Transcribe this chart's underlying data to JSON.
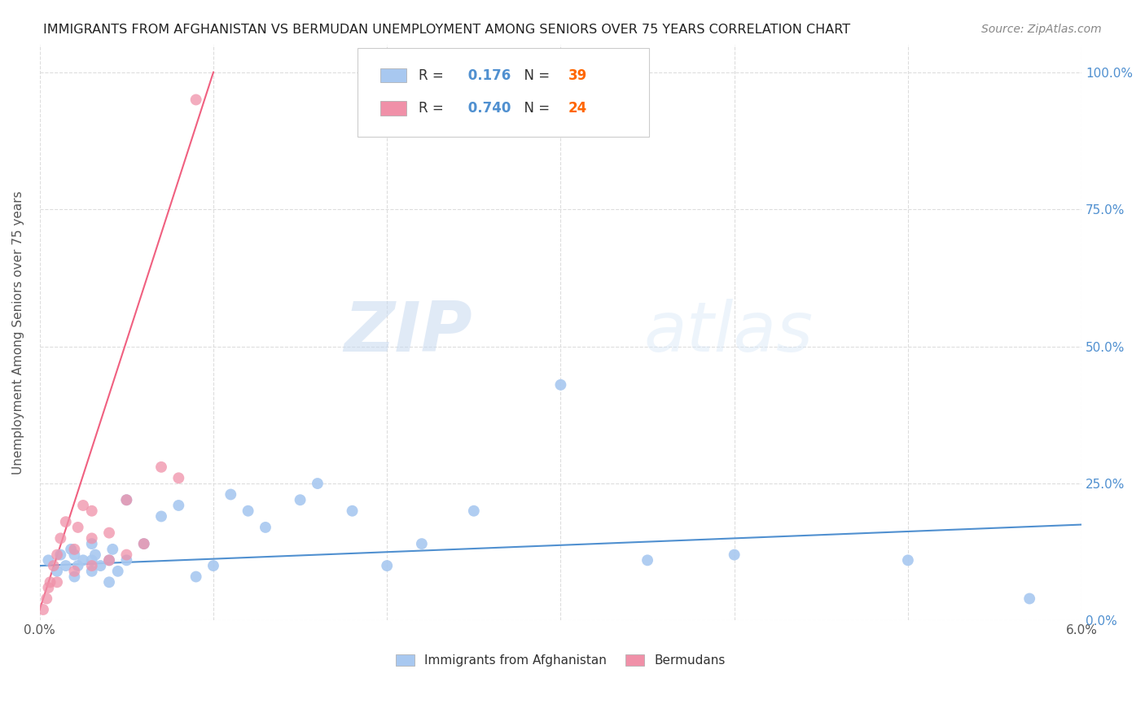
{
  "title": "IMMIGRANTS FROM AFGHANISTAN VS BERMUDAN UNEMPLOYMENT AMONG SENIORS OVER 75 YEARS CORRELATION CHART",
  "source": "Source: ZipAtlas.com",
  "ylabel": "Unemployment Among Seniors over 75 years",
  "legend_entries": [
    {
      "label": "Immigrants from Afghanistan",
      "color": "#a8c8f0",
      "R": "0.176",
      "N": "39"
    },
    {
      "label": "Bermudans",
      "color": "#f090a8",
      "R": "0.740",
      "N": "24"
    }
  ],
  "blue_scatter_x": [
    0.0005,
    0.001,
    0.0012,
    0.0015,
    0.0018,
    0.002,
    0.002,
    0.0022,
    0.0025,
    0.003,
    0.003,
    0.003,
    0.0032,
    0.0035,
    0.004,
    0.004,
    0.0042,
    0.0045,
    0.005,
    0.005,
    0.006,
    0.007,
    0.008,
    0.009,
    0.01,
    0.011,
    0.012,
    0.013,
    0.015,
    0.016,
    0.018,
    0.02,
    0.022,
    0.025,
    0.03,
    0.035,
    0.04,
    0.05,
    0.057
  ],
  "blue_scatter_y": [
    0.11,
    0.09,
    0.12,
    0.1,
    0.13,
    0.08,
    0.12,
    0.1,
    0.11,
    0.09,
    0.11,
    0.14,
    0.12,
    0.1,
    0.07,
    0.11,
    0.13,
    0.09,
    0.11,
    0.22,
    0.14,
    0.19,
    0.21,
    0.08,
    0.1,
    0.23,
    0.2,
    0.17,
    0.22,
    0.25,
    0.2,
    0.1,
    0.14,
    0.2,
    0.43,
    0.11,
    0.12,
    0.11,
    0.04
  ],
  "pink_scatter_x": [
    0.0002,
    0.0004,
    0.0005,
    0.0006,
    0.0008,
    0.001,
    0.001,
    0.0012,
    0.0015,
    0.002,
    0.002,
    0.0022,
    0.0025,
    0.003,
    0.003,
    0.003,
    0.004,
    0.004,
    0.005,
    0.005,
    0.006,
    0.007,
    0.008,
    0.009
  ],
  "pink_scatter_y": [
    0.02,
    0.04,
    0.06,
    0.07,
    0.1,
    0.07,
    0.12,
    0.15,
    0.18,
    0.09,
    0.13,
    0.17,
    0.21,
    0.1,
    0.15,
    0.2,
    0.11,
    0.16,
    0.12,
    0.22,
    0.14,
    0.28,
    0.26,
    0.95
  ],
  "blue_line_x": [
    0.0,
    0.06
  ],
  "blue_line_y": [
    0.1,
    0.175
  ],
  "pink_line_x": [
    0.0,
    0.01
  ],
  "pink_line_y": [
    0.02,
    1.0
  ],
  "xlim": [
    0.0,
    0.06
  ],
  "ylim": [
    0.0,
    1.05
  ],
  "blue_color": "#a8c8f0",
  "pink_color": "#f090a8",
  "blue_line_color": "#5090d0",
  "pink_line_color": "#f06080",
  "watermark_zip": "ZIP",
  "watermark_atlas": "atlas",
  "background_color": "#ffffff",
  "grid_color": "#dddddd",
  "ytick_values": [
    0.0,
    0.25,
    0.5,
    0.75,
    1.0
  ],
  "ytick_labels_right": [
    "0.0%",
    "25.0%",
    "50.0%",
    "75.0%",
    "100.0%"
  ],
  "xtick_values": [
    0.0,
    0.01,
    0.02,
    0.03,
    0.04,
    0.05,
    0.06
  ],
  "xtick_labels": [
    "0.0%",
    "",
    "",
    "",
    "",
    "",
    "6.0%"
  ]
}
